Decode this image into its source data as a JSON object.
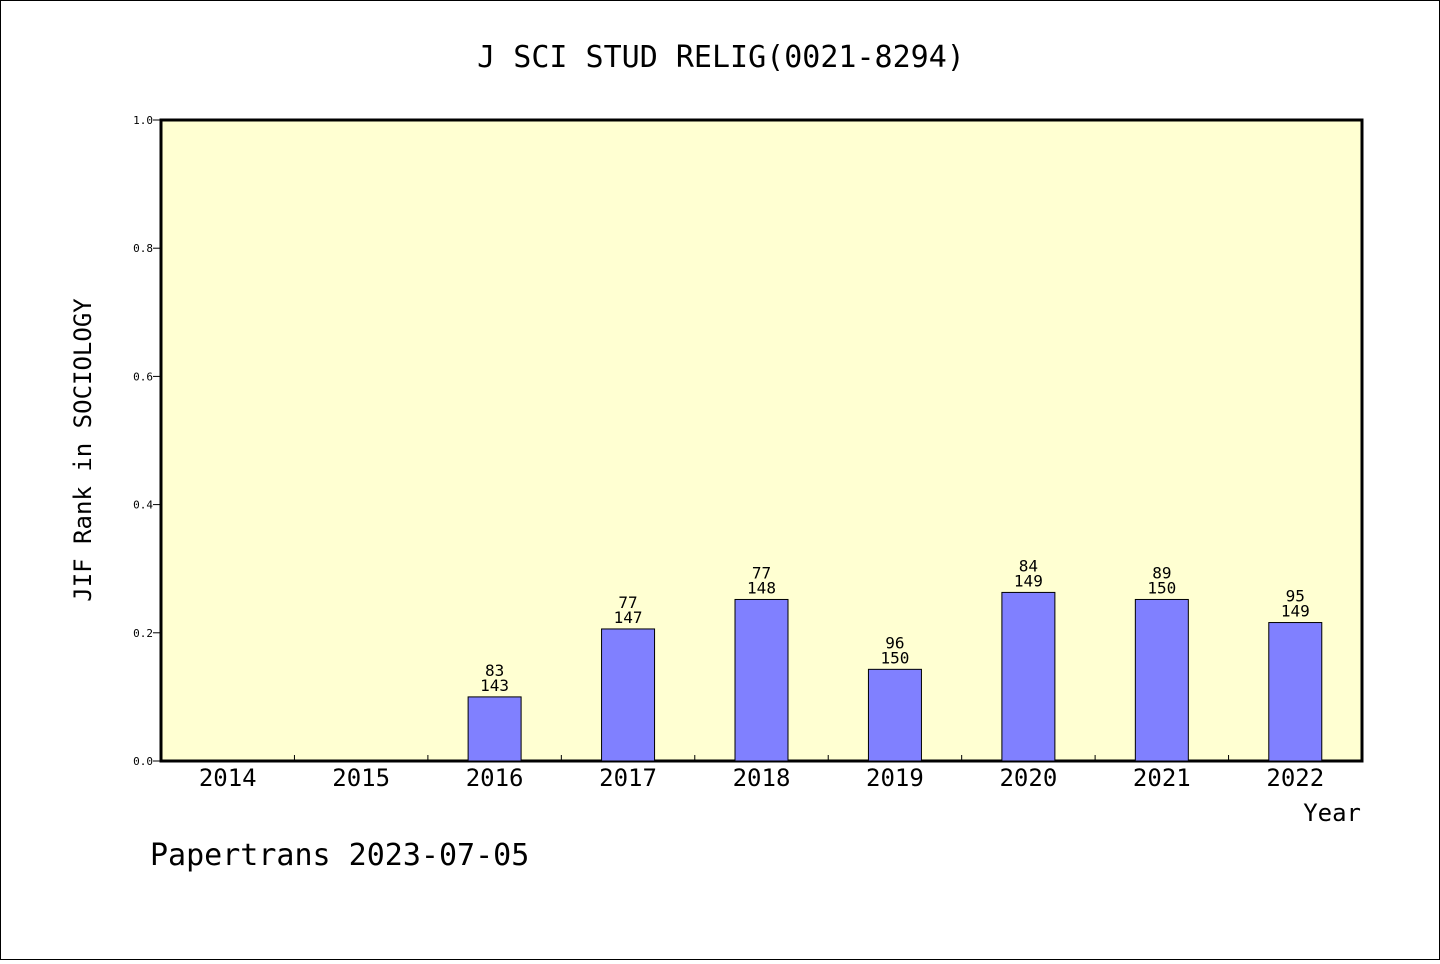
{
  "chart_data": {
    "type": "bar",
    "title": "J SCI STUD RELIG(0021-8294)",
    "xlabel": "Year",
    "ylabel": "JIF Rank in SOCIOLOGY",
    "ylim": [
      0.0,
      1.0
    ],
    "yticks": [
      "0.0",
      "0.2",
      "0.4",
      "0.6",
      "0.8",
      "1.0"
    ],
    "categories": [
      "2014",
      "2015",
      "2016",
      "2017",
      "2018",
      "2019",
      "2020",
      "2021",
      "2022"
    ],
    "values": [
      null,
      null,
      0.1,
      0.206,
      0.252,
      0.143,
      0.263,
      0.252,
      0.216
    ],
    "rank_labels": [
      {
        "rank": "",
        "total": ""
      },
      {
        "rank": "",
        "total": ""
      },
      {
        "rank": "83",
        "total": "143"
      },
      {
        "rank": "77",
        "total": "147"
      },
      {
        "rank": "77",
        "total": "148"
      },
      {
        "rank": "96",
        "total": "150"
      },
      {
        "rank": "84",
        "total": "149"
      },
      {
        "rank": "89",
        "total": "150"
      },
      {
        "rank": "95",
        "total": "149"
      }
    ],
    "grid": false,
    "plot_background": "#ffffd2",
    "bar_color": "#8080ff"
  },
  "footer": "Papertrans 2023-07-05"
}
